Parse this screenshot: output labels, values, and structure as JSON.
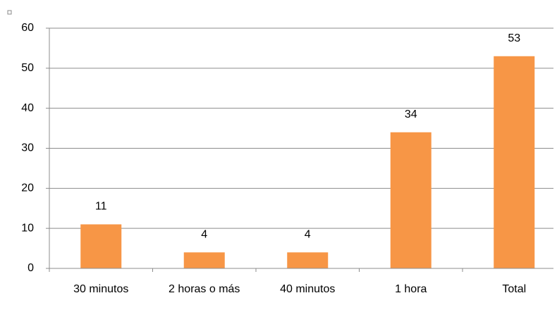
{
  "chart_data": {
    "type": "bar",
    "categories": [
      "30 minutos",
      "2 horas o más",
      "40 minutos",
      "1 hora",
      "Total"
    ],
    "values": [
      11,
      4,
      4,
      34,
      53
    ],
    "color": "#f79646",
    "ylim": [
      0,
      60
    ],
    "yticks": [
      0,
      10,
      20,
      30,
      40,
      50,
      60
    ],
    "grid": true
  }
}
